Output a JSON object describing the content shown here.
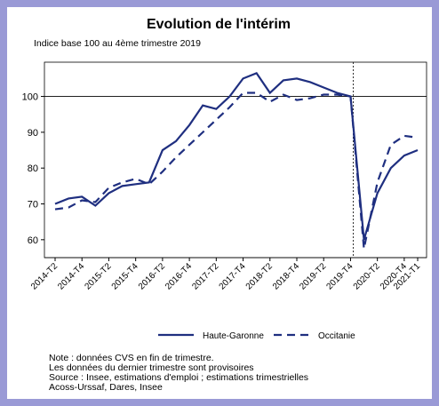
{
  "chart_data": {
    "type": "line",
    "title": "Evolution de l'intérim",
    "subtitle": "Indice base 100 au 4ème trimestre 2019",
    "categories": [
      "2014-T2",
      null,
      "2014-T4",
      null,
      "2015-T2",
      null,
      "2015-T4",
      null,
      "2016-T2",
      null,
      "2016-T4",
      null,
      "2017-T2",
      null,
      "2017-T4",
      null,
      "2018-T2",
      null,
      "2018-T4",
      null,
      "2019-T2",
      null,
      "2019-T4",
      null,
      "2020-T2",
      null,
      "2020-T4",
      "2021-T1"
    ],
    "series": [
      {
        "name": "Haute-Garonne",
        "color": "#1f2f80",
        "dash": false,
        "values": [
          70,
          71.5,
          72,
          69.5,
          73,
          75,
          75.5,
          76,
          85,
          87.5,
          92,
          97.5,
          96.5,
          100,
          105,
          106.5,
          101,
          104.5,
          105,
          104,
          102.5,
          101,
          100,
          60,
          73,
          80,
          83.5,
          85
        ]
      },
      {
        "name": "Occitanie",
        "color": "#1f2f80",
        "dash": true,
        "values": [
          68.5,
          69,
          71,
          70.5,
          74.5,
          76,
          77,
          75.5,
          79,
          83,
          86.5,
          90,
          93.5,
          97,
          101,
          101,
          98.5,
          100.5,
          99,
          99.5,
          100.5,
          100.5,
          100,
          57.5,
          76,
          86.5,
          89,
          88.5
        ]
      }
    ],
    "ylim": [
      55,
      117
    ],
    "yticks": [
      60,
      70,
      80,
      90,
      100
    ],
    "hline": 100,
    "vline": "2019-T4",
    "notes": [
      "Note : données CVS en fin de trimestre.",
      "Les données du dernier trimestre sont provisoires",
      "Source : Insee, estimations d'emploi ; estimations trimestrielles",
      "Acoss-Urssaf, Dares, Insee"
    ]
  }
}
